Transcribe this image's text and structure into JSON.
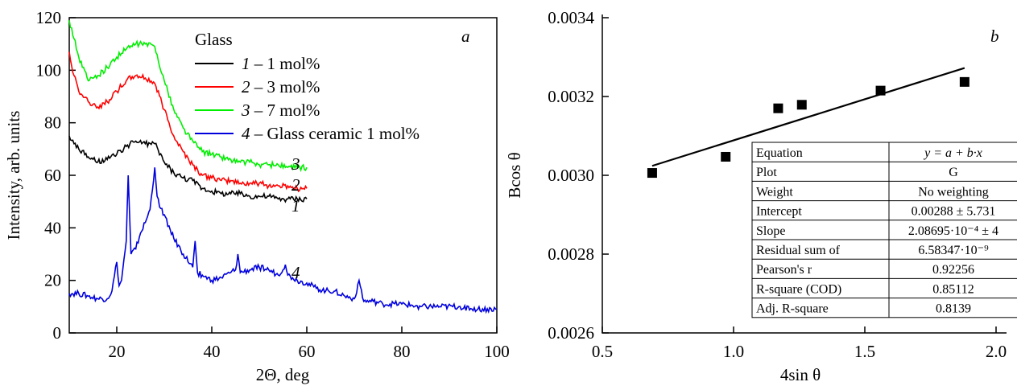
{
  "chart_data": [
    {
      "type": "line",
      "panel_label": "a",
      "xlabel": "2Θ, deg",
      "ylabel": "Intensity, arb. units",
      "xlim": [
        10,
        100
      ],
      "ylim": [
        0,
        120
      ],
      "xticks": [
        "20",
        "40",
        "60",
        "80",
        "100"
      ],
      "yticks": [
        "0",
        "20",
        "40",
        "60",
        "80",
        "100",
        "120"
      ],
      "legend_title": "Glass",
      "legend": [
        {
          "num": "1",
          "text": " – 1 mol%"
        },
        {
          "num": "2",
          "text": " – 3 mol%"
        },
        {
          "num": "3",
          "text": " – 7 mol%"
        },
        {
          "num": "4",
          "text": " – Glass ceramic 1 mol%"
        }
      ],
      "series": [
        {
          "num": "1",
          "color": "#000000",
          "x": [
            10,
            11,
            12,
            14,
            16,
            18,
            20,
            22,
            24,
            26,
            28,
            30,
            32,
            34,
            36,
            38,
            40,
            42,
            44,
            46,
            48,
            50,
            52,
            54,
            56,
            58,
            60
          ],
          "y": [
            75,
            72,
            70,
            67,
            65,
            66,
            68,
            71,
            73,
            72,
            72,
            65,
            61,
            59,
            58,
            55,
            54,
            53,
            53,
            53,
            52,
            52,
            52,
            51,
            51,
            51,
            51
          ]
        },
        {
          "num": "2",
          "color": "#ff0000",
          "x": [
            10,
            11,
            12,
            14,
            16,
            18,
            20,
            22,
            24,
            26,
            28,
            30,
            32,
            34,
            36,
            38,
            40,
            42,
            44,
            46,
            48,
            50,
            52,
            54,
            56,
            58,
            60
          ],
          "y": [
            107,
            98,
            92,
            88,
            86,
            88,
            92,
            96,
            98,
            97,
            95,
            85,
            75,
            69,
            64,
            60,
            59,
            58,
            58,
            57,
            57,
            57,
            56,
            56,
            56,
            55,
            55
          ]
        },
        {
          "num": "3",
          "color": "#00ee00",
          "x": [
            10,
            11,
            12,
            14,
            16,
            18,
            20,
            22,
            24,
            26,
            28,
            30,
            32,
            34,
            36,
            38,
            40,
            42,
            44,
            46,
            48,
            50,
            52,
            54,
            56,
            58,
            60
          ],
          "y": [
            119,
            112,
            105,
            96,
            98,
            101,
            105,
            108,
            110,
            110,
            109,
            96,
            85,
            78,
            73,
            69,
            68,
            67,
            66,
            65,
            65,
            64,
            64,
            64,
            63,
            63,
            63
          ]
        },
        {
          "num": "4",
          "color": "#0000dd",
          "x": [
            10,
            12,
            14,
            16,
            18,
            19,
            20,
            20.5,
            21,
            22,
            22.4,
            23,
            24,
            25,
            26,
            27,
            28,
            28.5,
            29,
            30,
            32,
            34,
            36,
            36.5,
            37,
            38,
            40,
            42,
            44,
            45,
            45.5,
            46,
            48,
            50,
            52,
            54,
            55.5,
            56,
            57,
            58,
            60,
            62,
            64,
            66,
            68,
            70,
            71,
            72,
            74,
            76,
            80,
            84,
            88,
            92,
            96,
            100
          ],
          "y": [
            15,
            15,
            14,
            13,
            13,
            16,
            27,
            18,
            20,
            35,
            60,
            30,
            32,
            38,
            42,
            47,
            63,
            52,
            48,
            45,
            36,
            30,
            25,
            35,
            23,
            22,
            20,
            21,
            23,
            24,
            30,
            23,
            24,
            25,
            24,
            22,
            26,
            22,
            21,
            20,
            19,
            17,
            16,
            16,
            14,
            13,
            20,
            12,
            12,
            11,
            11,
            10,
            10,
            10,
            9,
            9
          ]
        }
      ]
    },
    {
      "type": "scatter",
      "panel_label": "b",
      "xlabel": "4sin θ",
      "ylabel": "Bcos θ",
      "xlim": [
        0.5,
        2.0
      ],
      "ylim": [
        0.0026,
        0.0034
      ],
      "xticks": [
        "0.5",
        "1.0",
        "1.5",
        "2.0"
      ],
      "yticks": [
        "0.0026",
        "0.0028",
        "0.0030",
        "0.0032",
        "0.0034"
      ],
      "points": {
        "x": [
          0.69,
          0.97,
          1.17,
          1.26,
          1.56,
          1.88
        ],
        "y": [
          0.003006,
          0.003047,
          0.00317,
          0.003179,
          0.003215,
          0.003237
        ]
      },
      "fit": {
        "intercept": 0.00288,
        "slope": 0.000208695,
        "x": [
          0.69,
          1.88
        ]
      },
      "table": [
        [
          "Equation",
          "y = a + b·x"
        ],
        [
          "Plot",
          "G"
        ],
        [
          "Weight",
          "No weighting"
        ],
        [
          "Intercept",
          "0.00288 ± 5.731"
        ],
        [
          "Slope",
          "2.08695·10⁻⁴ ± 4"
        ],
        [
          "Residual sum of",
          "6.58347·10⁻⁹"
        ],
        [
          "Pearson's r",
          "0.92256"
        ],
        [
          "R-square (COD)",
          "0.85112"
        ],
        [
          "Adj. R-square",
          "0.8139"
        ]
      ]
    }
  ]
}
